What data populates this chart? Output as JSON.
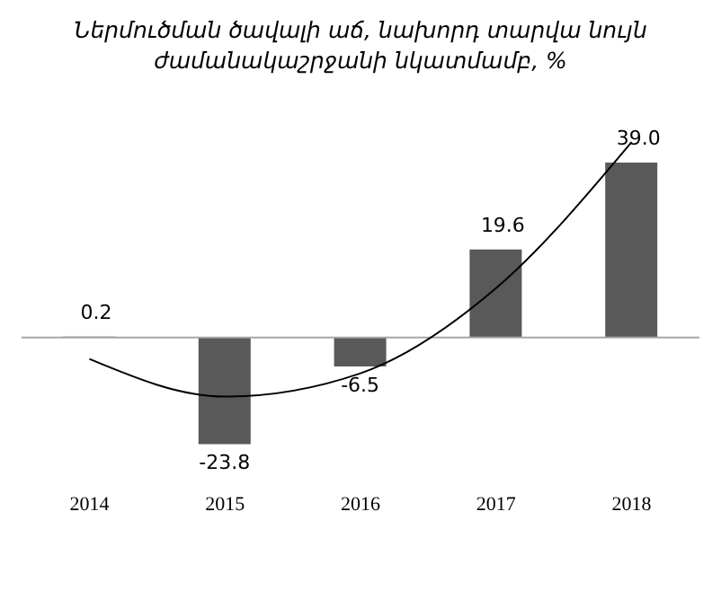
{
  "chart_data": {
    "type": "bar",
    "title": "Ներմուծման ծավալի աճ, նախորդ տարվա նույն ժամանակաշրջանի նկատմամբ,  %",
    "categories": [
      "2014",
      "2015",
      "2016",
      "2017",
      "2018"
    ],
    "series": [
      {
        "color": "#595959",
        "values": [
          0.2,
          -23.8,
          -6.5,
          19.6,
          39.0
        ],
        "value_labels": [
          "0.2",
          "-23.8",
          "-6.5",
          "19.6",
          "39.0"
        ]
      },
      {
        "type": "line",
        "color": "#000000",
        "values": [
          -4.8,
          -13.2,
          -8.0,
          11.0,
          43.6
        ]
      }
    ],
    "tick_labels": "x",
    "legend": false,
    "grid": false
  }
}
